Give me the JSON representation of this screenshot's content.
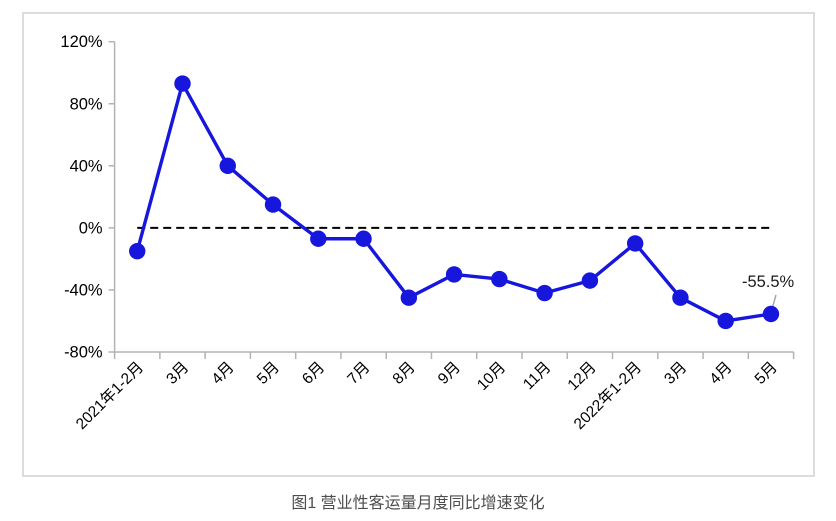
{
  "chart_data": {
    "type": "line",
    "title": "图1  营业性客运量月度同比增速变化",
    "categories": [
      "2021年1-2月",
      "3月",
      "4月",
      "5月",
      "6月",
      "7月",
      "8月",
      "9月",
      "10月",
      "11月",
      "12月",
      "2022年1-2月",
      "3月",
      "4月",
      "5月"
    ],
    "values": [
      -15,
      93,
      40,
      15,
      -7,
      -7,
      -45,
      -30,
      -33,
      -42,
      -34,
      -10,
      -45,
      -60,
      -55.5
    ],
    "xlabel": "",
    "ylabel": "",
    "ylim": [
      -80,
      120
    ],
    "ytick_step": 40,
    "ytick_labels": [
      "120%",
      "80%",
      "40%",
      "0%",
      "-40%",
      "-80%"
    ],
    "grid": false,
    "legend": "none",
    "zero_line": "dashed-black",
    "annotation": {
      "text": "-55.5%",
      "point_index": 14
    },
    "line_color": "#1616dd",
    "marker_color": "#1616dd",
    "axis_color": "#b3b3b3",
    "annotation_text_color": "#1a1a1a",
    "leader_line_color": "#a6a6a6",
    "frame_border_color": "#dcdcdc",
    "caption_color": "#4d4d4d"
  }
}
